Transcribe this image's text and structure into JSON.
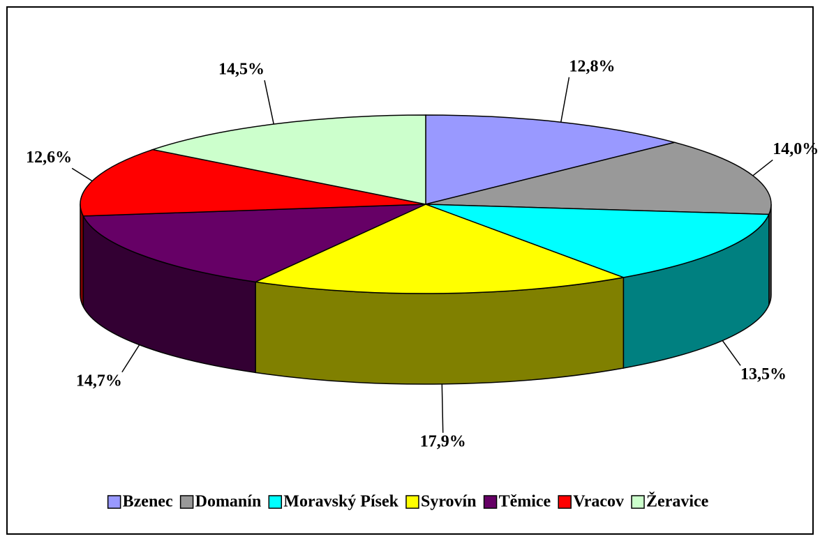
{
  "chart_data": {
    "type": "pie",
    "categories": [
      "Bzenec",
      "Domanín",
      "Moravský Písek",
      "Syrovín",
      "Těmice",
      "Vracov",
      "Žeravice"
    ],
    "values": [
      12.8,
      14.0,
      13.5,
      17.9,
      14.7,
      12.6,
      14.5
    ],
    "value_labels": [
      "12,8%",
      "14,0%",
      "13,5%",
      "17,9%",
      "14,7%",
      "12,6%",
      "14,5%"
    ],
    "colors": [
      "#9999ff",
      "#999999",
      "#00ffff",
      "#ffff00",
      "#660066",
      "#ff0000",
      "#ccffcc"
    ],
    "legend": "bottom"
  }
}
